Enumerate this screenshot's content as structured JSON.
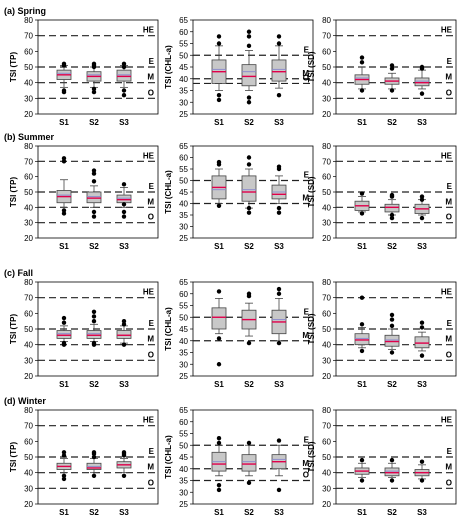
{
  "chart_data": [
    {
      "type": "box",
      "title": "(a) Spring",
      "ylabel": "TSI (TP)",
      "ylim": [
        20,
        80
      ],
      "yticks": [
        20,
        30,
        40,
        50,
        60,
        70,
        80
      ],
      "categories": [
        "S1",
        "S2",
        "S3"
      ],
      "reference_lines": [
        {
          "label": "HE",
          "value": 70
        },
        {
          "label": "E",
          "value": 50
        },
        {
          "label": "M",
          "value": 40
        },
        {
          "label": "O",
          "value": 30
        }
      ],
      "boxes": [
        {
          "whisker_low": 37,
          "q1": 42,
          "median": 45,
          "mean": 46,
          "q3": 48,
          "whisker_high": 51,
          "outliers": [
            34,
            35,
            51,
            52
          ]
        },
        {
          "whisker_low": 37,
          "q1": 41,
          "median": 44,
          "mean": 45,
          "q3": 47,
          "whisker_high": 50,
          "outliers": [
            34,
            36,
            50,
            51,
            52
          ]
        },
        {
          "whisker_low": 37,
          "q1": 41,
          "median": 44,
          "mean": 45,
          "q3": 48,
          "whisker_high": 51,
          "outliers": [
            32,
            35,
            50,
            52
          ]
        }
      ]
    },
    {
      "type": "box",
      "title": "",
      "ylabel": "TSI (CHL-a)",
      "ylim": [
        25,
        65
      ],
      "yticks": [
        25,
        30,
        35,
        40,
        45,
        50,
        55,
        60,
        65
      ],
      "categories": [
        "S1",
        "S2",
        "S3"
      ],
      "reference_lines": [
        {
          "label": "E",
          "value": 50
        },
        {
          "label": "M",
          "value": 40
        },
        {
          "label": "O",
          "value": 38
        }
      ],
      "boxes": [
        {
          "whisker_low": 35,
          "q1": 38,
          "median": 43,
          "mean": 44,
          "q3": 48,
          "whisker_high": 54,
          "outliers": [
            31,
            33,
            55,
            58
          ]
        },
        {
          "whisker_low": 35,
          "q1": 37,
          "median": 41,
          "mean": 43,
          "q3": 46,
          "whisker_high": 52,
          "outliers": [
            30,
            32,
            54,
            58,
            60
          ]
        },
        {
          "whisker_low": 36,
          "q1": 39,
          "median": 43,
          "mean": 44,
          "q3": 48,
          "whisker_high": 54,
          "outliers": [
            33,
            55,
            58
          ]
        }
      ]
    },
    {
      "type": "box",
      "title": "",
      "ylabel": "TSI (SD)",
      "ylim": [
        20,
        80
      ],
      "yticks": [
        20,
        30,
        40,
        50,
        60,
        70,
        80
      ],
      "categories": [
        "S1",
        "S2",
        "S3"
      ],
      "reference_lines": [
        {
          "label": "HE",
          "value": 70
        },
        {
          "label": "E",
          "value": 50
        },
        {
          "label": "M",
          "value": 40
        },
        {
          "label": "O",
          "value": 30
        }
      ],
      "boxes": [
        {
          "whisker_low": 36,
          "q1": 39,
          "median": 42,
          "mean": 43,
          "q3": 45,
          "whisker_high": 50,
          "outliers": [
            35,
            53,
            56
          ]
        },
        {
          "whisker_low": 36,
          "q1": 39,
          "median": 41,
          "mean": 41,
          "q3": 43,
          "whisker_high": 46,
          "outliers": [
            35,
            49,
            51
          ]
        },
        {
          "whisker_low": 36,
          "q1": 38,
          "median": 40,
          "mean": 41,
          "q3": 43,
          "whisker_high": 48,
          "outliers": [
            33,
            49,
            50
          ]
        }
      ]
    },
    {
      "type": "box",
      "title": "(b) Summer",
      "ylabel": "TSI (TP)",
      "ylim": [
        20,
        80
      ],
      "yticks": [
        20,
        30,
        40,
        50,
        60,
        70,
        80
      ],
      "categories": [
        "S1",
        "S2",
        "S3"
      ],
      "reference_lines": [
        {
          "label": "HE",
          "value": 70
        },
        {
          "label": "E",
          "value": 50
        },
        {
          "label": "M",
          "value": 40
        },
        {
          "label": "O",
          "value": 30
        }
      ],
      "boxes": [
        {
          "whisker_low": 40,
          "q1": 43,
          "median": 47,
          "mean": 48,
          "q3": 51,
          "whisker_high": 58,
          "outliers": [
            36,
            38,
            70,
            72
          ]
        },
        {
          "whisker_low": 40,
          "q1": 43,
          "median": 46,
          "mean": 47,
          "q3": 50,
          "whisker_high": 54,
          "outliers": [
            34,
            37,
            57,
            62,
            64
          ]
        },
        {
          "whisker_low": 40,
          "q1": 43,
          "median": 45,
          "mean": 46,
          "q3": 48,
          "whisker_high": 53,
          "outliers": [
            34,
            37,
            42,
            55
          ]
        }
      ]
    },
    {
      "type": "box",
      "title": "",
      "ylabel": "TSI (CHL-a)",
      "ylim": [
        25,
        65
      ],
      "yticks": [
        25,
        30,
        35,
        40,
        45,
        50,
        55,
        60,
        65
      ],
      "categories": [
        "S1",
        "S2",
        "S3"
      ],
      "reference_lines": [
        {
          "label": "E",
          "value": 50
        },
        {
          "label": "M",
          "value": 40
        }
      ],
      "boxes": [
        {
          "whisker_low": 40,
          "q1": 42,
          "median": 47,
          "mean": 46,
          "q3": 52,
          "whisker_high": 55,
          "outliers": [
            39,
            57,
            58
          ]
        },
        {
          "whisker_low": 38,
          "q1": 41,
          "median": 45,
          "mean": 46,
          "q3": 52,
          "whisker_high": 55,
          "outliers": [
            36,
            38,
            57,
            60
          ]
        },
        {
          "whisker_low": 40,
          "q1": 42,
          "median": 44,
          "mean": 45,
          "q3": 48,
          "whisker_high": 52,
          "outliers": [
            36,
            38,
            55,
            56
          ]
        }
      ]
    },
    {
      "type": "box",
      "title": "",
      "ylabel": "TSI (SD)",
      "ylim": [
        20,
        80
      ],
      "yticks": [
        20,
        30,
        40,
        50,
        60,
        70,
        80
      ],
      "categories": [
        "S1",
        "S2",
        "S3"
      ],
      "reference_lines": [
        {
          "label": "HE",
          "value": 70
        },
        {
          "label": "E",
          "value": 50
        },
        {
          "label": "M",
          "value": 40
        },
        {
          "label": "O",
          "value": 30
        }
      ],
      "boxes": [
        {
          "whisker_low": 37,
          "q1": 38,
          "median": 41,
          "mean": 41,
          "q3": 44,
          "whisker_high": 47,
          "outliers": [
            36,
            49
          ]
        },
        {
          "whisker_low": 35,
          "q1": 37,
          "median": 40,
          "mean": 40,
          "q3": 42,
          "whisker_high": 45,
          "outliers": [
            33,
            35,
            47,
            48
          ]
        },
        {
          "whisker_low": 35,
          "q1": 36,
          "median": 39,
          "mean": 39,
          "q3": 42,
          "whisker_high": 45,
          "outliers": [
            33,
            45,
            47
          ]
        }
      ]
    },
    {
      "type": "box",
      "title": "(c) Fall",
      "ylabel": "TSI (TP)",
      "ylim": [
        20,
        80
      ],
      "yticks": [
        20,
        30,
        40,
        50,
        60,
        70,
        80
      ],
      "categories": [
        "S1",
        "S2",
        "S3"
      ],
      "reference_lines": [
        {
          "label": "HE",
          "value": 70
        },
        {
          "label": "E",
          "value": 50
        },
        {
          "label": "M",
          "value": 40
        },
        {
          "label": "O",
          "value": 30
        }
      ],
      "boxes": [
        {
          "whisker_low": 42,
          "q1": 44,
          "median": 46,
          "mean": 47,
          "q3": 49,
          "whisker_high": 52,
          "outliers": [
            40,
            41,
            54,
            57
          ]
        },
        {
          "whisker_low": 42,
          "q1": 44,
          "median": 46,
          "mean": 47,
          "q3": 49,
          "whisker_high": 53,
          "outliers": [
            40,
            41,
            55,
            58,
            61
          ]
        },
        {
          "whisker_low": 41,
          "q1": 44,
          "median": 46,
          "mean": 46,
          "q3": 49,
          "whisker_high": 52,
          "outliers": [
            40,
            53,
            55
          ]
        }
      ]
    },
    {
      "type": "box",
      "title": "",
      "ylabel": "TSI (CHL-a)",
      "ylim": [
        25,
        65
      ],
      "yticks": [
        25,
        30,
        35,
        40,
        45,
        50,
        55,
        60,
        65
      ],
      "categories": [
        "S1",
        "S2",
        "S3"
      ],
      "reference_lines": [
        {
          "label": "E",
          "value": 50
        },
        {
          "label": "M",
          "value": 40
        }
      ],
      "boxes": [
        {
          "whisker_low": 43,
          "q1": 45,
          "median": 50,
          "mean": 50,
          "q3": 54,
          "whisker_high": 58,
          "outliers": [
            30,
            41,
            61
          ]
        },
        {
          "whisker_low": 42,
          "q1": 45,
          "median": 49,
          "mean": 49,
          "q3": 53,
          "whisker_high": 56,
          "outliers": [
            39,
            59,
            60
          ]
        },
        {
          "whisker_low": 40,
          "q1": 43,
          "median": 48,
          "mean": 49,
          "q3": 53,
          "whisker_high": 58,
          "outliers": [
            39,
            60,
            62
          ]
        }
      ]
    },
    {
      "type": "box",
      "title": "",
      "ylabel": "TSI (SD)",
      "ylim": [
        20,
        80
      ],
      "yticks": [
        20,
        30,
        40,
        50,
        60,
        70,
        80
      ],
      "categories": [
        "S1",
        "S2",
        "S3"
      ],
      "reference_lines": [
        {
          "label": "HE",
          "value": 70
        },
        {
          "label": "E",
          "value": 50
        },
        {
          "label": "M",
          "value": 40
        },
        {
          "label": "O",
          "value": 30
        }
      ],
      "boxes": [
        {
          "whisker_low": 38,
          "q1": 40,
          "median": 43,
          "mean": 44,
          "q3": 47,
          "whisker_high": 51,
          "outliers": [
            36,
            53,
            70
          ]
        },
        {
          "whisker_low": 37,
          "q1": 39,
          "median": 42,
          "mean": 43,
          "q3": 46,
          "whisker_high": 50,
          "outliers": [
            35,
            52,
            56,
            59
          ]
        },
        {
          "whisker_low": 36,
          "q1": 38,
          "median": 41,
          "mean": 41,
          "q3": 45,
          "whisker_high": 48,
          "outliers": [
            33,
            51,
            54
          ]
        }
      ]
    },
    {
      "type": "box",
      "title": "(d) Winter",
      "ylabel": "TSI (TP)",
      "ylim": [
        20,
        80
      ],
      "yticks": [
        20,
        30,
        40,
        50,
        60,
        70,
        80
      ],
      "categories": [
        "S1",
        "S2",
        "S3"
      ],
      "reference_lines": [
        {
          "label": "HE",
          "value": 70
        },
        {
          "label": "E",
          "value": 50
        },
        {
          "label": "M",
          "value": 40
        },
        {
          "label": "O",
          "value": 30
        }
      ],
      "boxes": [
        {
          "whisker_low": 40,
          "q1": 42,
          "median": 44,
          "mean": 44,
          "q3": 46,
          "whisker_high": 49,
          "outliers": [
            36,
            38,
            51,
            53
          ]
        },
        {
          "whisker_low": 40,
          "q1": 42,
          "median": 43,
          "mean": 44,
          "q3": 46,
          "whisker_high": 49,
          "outliers": [
            38,
            50,
            52,
            53
          ]
        },
        {
          "whisker_low": 40,
          "q1": 43,
          "median": 45,
          "mean": 45,
          "q3": 47,
          "whisker_high": 49,
          "outliers": [
            38,
            51,
            52,
            53
          ]
        }
      ]
    },
    {
      "type": "box",
      "title": "",
      "ylabel": "TSI (CHL-a)",
      "ylim": [
        25,
        65
      ],
      "yticks": [
        25,
        30,
        35,
        40,
        45,
        50,
        55,
        60,
        65
      ],
      "categories": [
        "S1",
        "S2",
        "S3"
      ],
      "reference_lines": [
        {
          "label": "E",
          "value": 50
        },
        {
          "label": "M",
          "value": 40
        },
        {
          "label": "O",
          "value": 35
        }
      ],
      "boxes": [
        {
          "whisker_low": 37,
          "q1": 39,
          "median": 42,
          "mean": 43,
          "q3": 47,
          "whisker_high": 50,
          "outliers": [
            31,
            33,
            51,
            53
          ]
        },
        {
          "whisker_low": 37,
          "q1": 39,
          "median": 42,
          "mean": 43,
          "q3": 46,
          "whisker_high": 50,
          "outliers": [
            34,
            51
          ]
        },
        {
          "whisker_low": 37,
          "q1": 40,
          "median": 43,
          "mean": 44,
          "q3": 46,
          "whisker_high": 50,
          "outliers": [
            31,
            52
          ]
        }
      ]
    },
    {
      "type": "box",
      "title": "",
      "ylabel": "TSI (SD)",
      "ylim": [
        20,
        80
      ],
      "yticks": [
        20,
        30,
        40,
        50,
        60,
        70,
        80
      ],
      "categories": [
        "S1",
        "S2",
        "S3"
      ],
      "reference_lines": [
        {
          "label": "HE",
          "value": 70
        },
        {
          "label": "E",
          "value": 50
        },
        {
          "label": "M",
          "value": 40
        },
        {
          "label": "O",
          "value": 30
        }
      ],
      "boxes": [
        {
          "whisker_low": 37,
          "q1": 39,
          "median": 41,
          "mean": 41,
          "q3": 43,
          "whisker_high": 46,
          "outliers": [
            35,
            48
          ]
        },
        {
          "whisker_low": 37,
          "q1": 38,
          "median": 40,
          "mean": 41,
          "q3": 43,
          "whisker_high": 46,
          "outliers": [
            35,
            48
          ]
        },
        {
          "whisker_low": 36,
          "q1": 38,
          "median": 40,
          "mean": 40,
          "q3": 42,
          "whisker_high": 45,
          "outliers": [
            35,
            47
          ]
        }
      ]
    }
  ],
  "colors": {
    "box_fill": "#c8c8c8",
    "box_edge": "#444444",
    "median_line": "#e0004a",
    "mean_line": "#8888cc",
    "reference_line": "#222222",
    "outlier": "#000000"
  }
}
